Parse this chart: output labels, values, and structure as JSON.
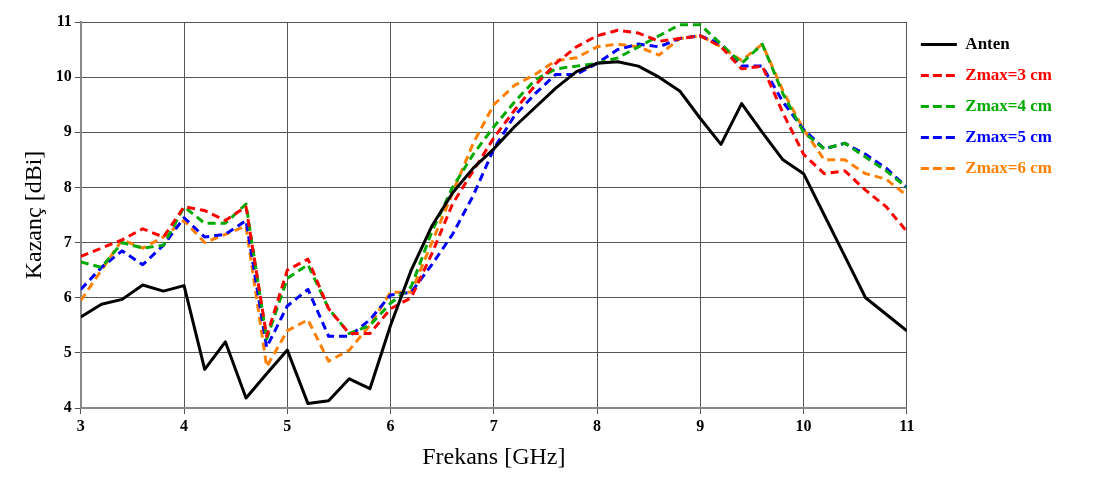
{
  "chart_data": {
    "type": "line",
    "xlabel": "Frekans [GHz]",
    "ylabel": "Kazanç [dBi]",
    "x": [
      3,
      3.2,
      3.4,
      3.6,
      3.8,
      4,
      4.2,
      4.4,
      4.6,
      4.8,
      5,
      5.2,
      5.4,
      5.6,
      5.8,
      6,
      6.2,
      6.4,
      6.6,
      6.8,
      7,
      7.2,
      7.4,
      7.6,
      7.8,
      8,
      8.2,
      8.4,
      8.6,
      8.8,
      9,
      9.2,
      9.4,
      9.6,
      9.8,
      10,
      10.2,
      10.4,
      10.6,
      10.8,
      11
    ],
    "series": [
      {
        "name": "Anten",
        "color": "#000000",
        "line_style": "solid",
        "values": [
          5.65,
          5.88,
          5.97,
          6.23,
          6.12,
          6.22,
          4.7,
          5.2,
          4.18,
          4.62,
          5.05,
          4.08,
          4.13,
          4.53,
          4.35,
          5.5,
          6.5,
          7.3,
          7.9,
          8.35,
          8.7,
          9.1,
          9.45,
          9.8,
          10.1,
          10.25,
          10.28,
          10.2,
          10,
          9.75,
          9.25,
          8.78,
          9.52,
          9,
          8.5,
          8.25,
          7.5,
          6.75,
          6,
          5.7,
          5.4
        ]
      },
      {
        "name": "Zmax=3 cm",
        "color": "#ff0000",
        "line_style": "dashed",
        "values": [
          6.75,
          6.9,
          7.05,
          7.25,
          7.1,
          7.65,
          7.58,
          7.4,
          7.65,
          5.3,
          6.5,
          6.7,
          5.8,
          5.35,
          5.35,
          5.8,
          6,
          6.8,
          7.7,
          8.3,
          8.9,
          9.4,
          9.85,
          10.25,
          10.55,
          10.75,
          10.85,
          10.8,
          10.65,
          10.7,
          10.75,
          10.55,
          10.15,
          10.2,
          9.35,
          8.6,
          8.25,
          8.3,
          7.95,
          7.65,
          7.2
        ]
      },
      {
        "name": "Zmax=4 cm",
        "color": "#00aa00",
        "line_style": "dashed",
        "values": [
          6.65,
          6.55,
          7,
          6.9,
          6.95,
          7.65,
          7.35,
          7.35,
          7.7,
          5.25,
          6.35,
          6.6,
          5.8,
          5.35,
          5.5,
          5.9,
          6.2,
          7.2,
          8,
          8.6,
          9.1,
          9.55,
          9.95,
          10.15,
          10.2,
          10.25,
          10.35,
          10.55,
          10.75,
          10.95,
          10.95,
          10.6,
          10.25,
          10.6,
          9.7,
          9,
          8.7,
          8.8,
          8.55,
          8.3,
          8
        ]
      },
      {
        "name": "Zmax=5 cm",
        "color": "#0000ff",
        "line_style": "dashed",
        "values": [
          6.15,
          6.55,
          6.85,
          6.6,
          6.95,
          7.45,
          7.1,
          7.15,
          7.4,
          5.1,
          5.85,
          6.15,
          5.3,
          5.3,
          5.6,
          6.05,
          6.1,
          6.6,
          7.15,
          7.85,
          8.7,
          9.3,
          9.7,
          10.05,
          10.05,
          10.25,
          10.5,
          10.6,
          10.55,
          10.7,
          10.75,
          10.6,
          10.2,
          10.2,
          9.55,
          9.05,
          8.7,
          8.8,
          8.6,
          8.35,
          8
        ]
      },
      {
        "name": "Zmax=6 cm",
        "color": "#ff8000",
        "line_style": "dashed",
        "values": [
          5.95,
          6.5,
          7.05,
          6.9,
          7.1,
          7.4,
          7,
          7.15,
          7.3,
          4.75,
          5.4,
          5.6,
          4.85,
          5.05,
          5.5,
          6.1,
          6.1,
          7,
          7.9,
          8.8,
          9.5,
          9.85,
          10.05,
          10.3,
          10.35,
          10.55,
          10.6,
          10.55,
          10.4,
          10.7,
          10.75,
          10.55,
          10.3,
          10.6,
          9.75,
          9.05,
          8.5,
          8.5,
          8.25,
          8.15,
          7.85
        ]
      }
    ],
    "xlim": [
      3,
      11
    ],
    "ylim": [
      4,
      11
    ],
    "xticks": [
      3,
      4,
      5,
      6,
      7,
      8,
      9,
      10,
      11
    ],
    "yticks": [
      4,
      5,
      6,
      7,
      8,
      9,
      10,
      11
    ],
    "grid": true,
    "legend": "right",
    "marker": "none"
  }
}
